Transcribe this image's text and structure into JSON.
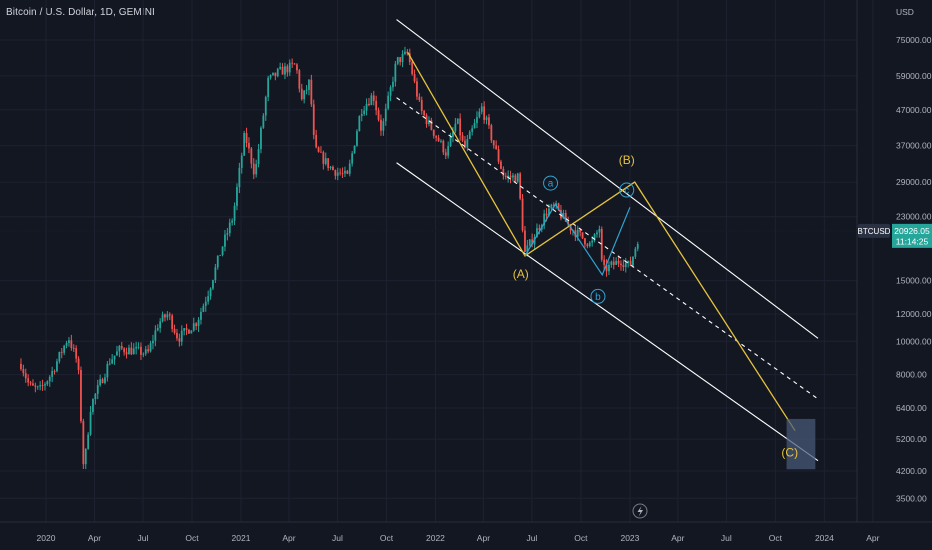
{
  "chart_data": {
    "type": "candlestick",
    "title": "Bitcoin / U.S. Dollar, 1D, GEMINI",
    "currency": "USD",
    "scale": "log",
    "grid": true,
    "colors": {
      "background": "#131722",
      "up": "#26a69a",
      "down": "#ef5350",
      "channel": "#ffffff",
      "wave_major": "#e6c33e",
      "wave_minor": "#2fa3d0",
      "target_box": "#4a5a78",
      "price_tag": "#26a69a",
      "symbol_tag": "#2a3142"
    },
    "x_ticks": [
      "2020",
      "Apr",
      "Jul",
      "Oct",
      "2021",
      "Apr",
      "Jul",
      "Oct",
      "2022",
      "Apr",
      "Jul",
      "Oct",
      "2023",
      "Apr",
      "Jul",
      "Oct",
      "2024",
      "Apr"
    ],
    "y_ticks": [
      "75000.00",
      "59000.00",
      "47000.00",
      "37000.00",
      "29000.00",
      "23000.00",
      "15000.00",
      "12000.00",
      "10000.00",
      "8000.00",
      "6400.00",
      "5200.00",
      "4200.00",
      "3500.00"
    ],
    "y_tick_values": [
      75000,
      59000,
      47000,
      37000,
      29000,
      23000,
      15000,
      12000,
      10000,
      8000,
      6400,
      5200,
      4200,
      3500
    ],
    "last_price": {
      "symbol": "BTCUSD",
      "price": "20926.05",
      "countdown": "11:14:25",
      "value": 20926.05
    },
    "price_path": [
      [
        "2019-11-15",
        8600
      ],
      [
        "2019-12-01",
        7400
      ],
      [
        "2019-12-20",
        7200
      ],
      [
        "2020-01-10",
        8000
      ],
      [
        "2020-02-12",
        10300
      ],
      [
        "2020-03-01",
        8600
      ],
      [
        "2020-03-12",
        4200
      ],
      [
        "2020-03-25",
        6500
      ],
      [
        "2020-04-30",
        8800
      ],
      [
        "2020-05-20",
        9500
      ],
      [
        "2020-06-15",
        9400
      ],
      [
        "2020-07-10",
        9200
      ],
      [
        "2020-07-30",
        11300
      ],
      [
        "2020-08-17",
        12000
      ],
      [
        "2020-09-05",
        10200
      ],
      [
        "2020-10-10",
        11400
      ],
      [
        "2020-10-31",
        13800
      ],
      [
        "2020-11-25",
        18500
      ],
      [
        "2020-12-17",
        23000
      ],
      [
        "2021-01-08",
        40000
      ],
      [
        "2021-01-27",
        30500
      ],
      [
        "2021-02-21",
        57000
      ],
      [
        "2021-03-13",
        60500
      ],
      [
        "2021-04-14",
        63500
      ],
      [
        "2021-04-25",
        50000
      ],
      [
        "2021-05-10",
        57000
      ],
      [
        "2021-05-19",
        36000
      ],
      [
        "2021-06-22",
        31500
      ],
      [
        "2021-07-20",
        30000
      ],
      [
        "2021-08-14",
        47000
      ],
      [
        "2021-09-06",
        52000
      ],
      [
        "2021-09-22",
        40800
      ],
      [
        "2021-10-20",
        65000
      ],
      [
        "2021-11-10",
        68500
      ],
      [
        "2021-12-04",
        47000
      ],
      [
        "2022-01-22",
        35000
      ],
      [
        "2022-02-10",
        44000
      ],
      [
        "2022-02-24",
        36000
      ],
      [
        "2022-03-29",
        47700
      ],
      [
        "2022-05-10",
        30000
      ],
      [
        "2022-06-05",
        30000
      ],
      [
        "2022-06-18",
        18000
      ],
      [
        "2022-07-30",
        24000
      ],
      [
        "2022-08-14",
        24500
      ],
      [
        "2022-09-10",
        21500
      ],
      [
        "2022-10-20",
        19000
      ],
      [
        "2022-11-05",
        21400
      ],
      [
        "2022-11-10",
        16000
      ],
      [
        "2022-12-15",
        17200
      ],
      [
        "2023-01-01",
        16500
      ],
      [
        "2023-01-20",
        20926
      ]
    ],
    "channel_lines": [
      {
        "name": "upper",
        "style": "solid",
        "points": [
          [
            "2021-10-20",
            86000
          ],
          [
            "2023-12-20",
            10200
          ]
        ]
      },
      {
        "name": "middle",
        "style": "dashed",
        "points": [
          [
            "2021-10-20",
            51000
          ],
          [
            "2023-12-20",
            6800
          ]
        ]
      },
      {
        "name": "lower",
        "style": "solid",
        "points": [
          [
            "2021-10-20",
            33000
          ],
          [
            "2023-12-20",
            4500
          ]
        ]
      }
    ],
    "wave_major": [
      [
        "2021-11-10",
        69000
      ],
      [
        "2022-06-18",
        17700
      ],
      [
        "2023-01-10",
        29000
      ],
      [
        "2023-11-07",
        5500
      ]
    ],
    "wave_minor": [
      [
        "2022-06-18",
        17700
      ],
      [
        "2022-08-14",
        25000
      ],
      [
        "2022-11-10",
        15600
      ],
      [
        "2023-01-01",
        24500
      ]
    ],
    "target_zone": {
      "x0": "2023-10-22",
      "x1": "2023-12-15",
      "y0": 5950,
      "y1": 4250
    },
    "annotations": [
      {
        "text": "(A)",
        "x": "2022-06-10",
        "y": 15700,
        "color": "wave_major",
        "circled": false
      },
      {
        "text": "(B)",
        "x": "2022-12-26",
        "y": 33600,
        "color": "wave_major",
        "circled": false
      },
      {
        "text": "(C)",
        "x": "2023-10-28",
        "y": 4750,
        "color": "wave_major",
        "circled": false
      },
      {
        "text": "a",
        "x": "2022-08-05",
        "y": 28800,
        "color": "wave_minor",
        "circled": true
      },
      {
        "text": "b",
        "x": "2022-11-02",
        "y": 13500,
        "color": "wave_minor",
        "circled": true
      },
      {
        "text": "c",
        "x": "2022-12-26",
        "y": 27500,
        "color": "wave_minor",
        "circled": true
      }
    ]
  }
}
